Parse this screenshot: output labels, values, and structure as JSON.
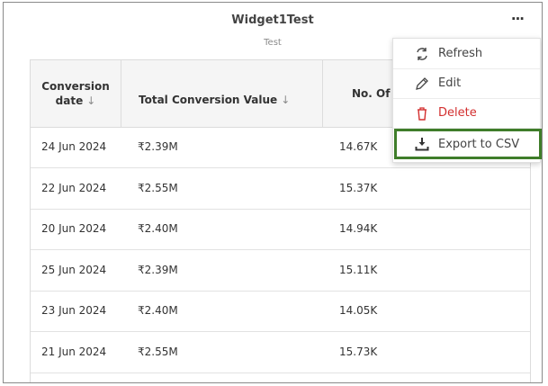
{
  "widget": {
    "title": "Widget1Test",
    "subtitle": "Test",
    "more_label": "···"
  },
  "table": {
    "headers": {
      "date_line1": "Conversion",
      "date_line2": "date",
      "value": "Total Conversion Value",
      "count": "No. Of"
    },
    "rows": [
      {
        "date": "24 Jun 2024",
        "value": "₹2.39M",
        "count": "14.67K"
      },
      {
        "date": "22 Jun 2024",
        "value": "₹2.55M",
        "count": "15.37K"
      },
      {
        "date": "20 Jun 2024",
        "value": "₹2.40M",
        "count": "14.94K"
      },
      {
        "date": "25 Jun 2024",
        "value": "₹2.39M",
        "count": "15.11K"
      },
      {
        "date": "23 Jun 2024",
        "value": "₹2.40M",
        "count": "14.05K"
      },
      {
        "date": "21 Jun 2024",
        "value": "₹2.55M",
        "count": "15.73K"
      }
    ]
  },
  "menu": {
    "items": [
      {
        "label": "Refresh",
        "icon": "refresh-icon"
      },
      {
        "label": "Edit",
        "icon": "pencil-icon"
      },
      {
        "label": "Delete",
        "icon": "trash-icon"
      },
      {
        "label": "Export to CSV",
        "icon": "download-icon"
      }
    ]
  },
  "colors": {
    "delete": "#d32f2f",
    "highlight_border": "#3f7d2a"
  }
}
